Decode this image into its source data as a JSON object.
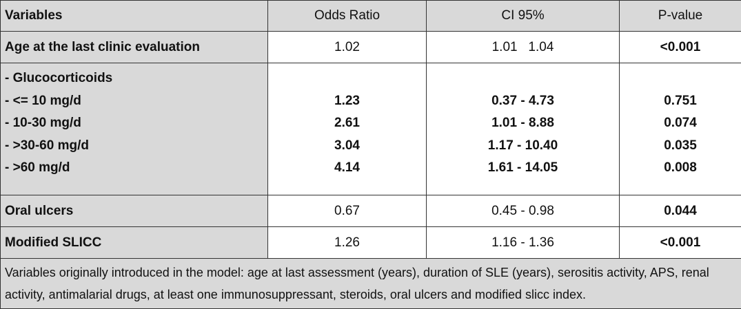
{
  "header": [
    "Variables",
    "Odds Ratio",
    "CI 95%",
    "P-value"
  ],
  "rows": [
    {
      "variable": "Age at the last clinic evaluation",
      "odds_ratio": "1.02",
      "ci": "1.01   1.04",
      "p_value": "<0.001",
      "p_bold": true
    },
    {
      "variable": "- Glucocorticoids",
      "sub": [
        {
          "variable": "- <= 10 mg/d",
          "odds_ratio": "1.23",
          "ci": "0.37 - 4.73",
          "p_value": "0.751",
          "p_bold": false
        },
        {
          "variable": "- 10-30 mg/d",
          "odds_ratio": "2.61",
          "ci": "1.01 - 8.88",
          "p_value": "0.074",
          "p_bold": true
        },
        {
          "variable": "- >30-60 mg/d",
          "odds_ratio": "3.04",
          "ci": "1.17 - 10.40",
          "p_value": "0.035",
          "p_bold": true
        },
        {
          "variable": "- >60 mg/d",
          "odds_ratio": "4.14",
          "ci": "1.61 - 14.05",
          "p_value": "0.008",
          "p_bold": true
        }
      ]
    },
    {
      "variable": "Oral ulcers",
      "odds_ratio": "0.67",
      "ci": "0.45 - 0.98",
      "p_value": "0.044",
      "p_bold": true
    },
    {
      "variable": "Modified SLICC",
      "odds_ratio": "1.26",
      "ci": "1.16 - 1.36",
      "p_value": "<0.001",
      "p_bold": true
    }
  ],
  "footnote": "Variables originally introduced in the model: age at last assessment (years), duration of SLE (years), serositis activity, APS, renal activity, antimalarial drugs, at least one immunosuppressant, steroids, oral ulcers and modified slicc index."
}
